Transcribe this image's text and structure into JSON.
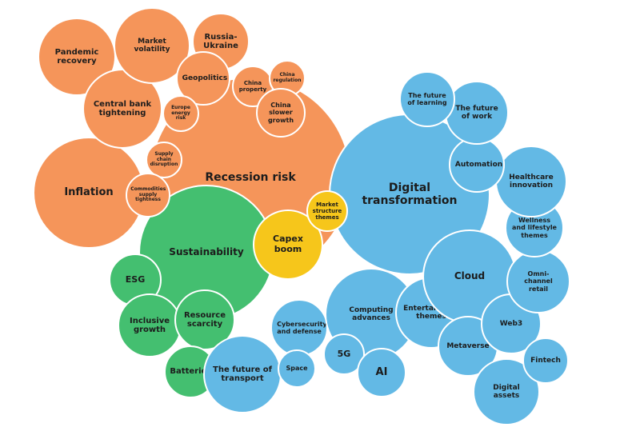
{
  "nodes": [
    {
      "label": "Recession risk"
    },
    {
      "label": "Digital transformation"
    },
    {
      "label": "Sustainability"
    },
    {
      "label": "Inflation"
    },
    {
      "label": "Pandemic recovery"
    },
    {
      "label": "Central bank tightening"
    },
    {
      "label": "Market volatility"
    },
    {
      "label": "Russia-Ukraine"
    },
    {
      "label": "Geopolitics"
    },
    {
      "label": "China property"
    },
    {
      "label": "China regulation"
    },
    {
      "label": "China slower growth"
    },
    {
      "label": "Europe energy risk"
    },
    {
      "label": "Supply chain disruption"
    },
    {
      "label": "Commodities supply tightness"
    },
    {
      "label": "Capex boom"
    },
    {
      "label": "Market structure themes"
    },
    {
      "label": "ESG"
    },
    {
      "label": "Inclusive growth"
    },
    {
      "label": "Resource scarcity"
    },
    {
      "label": "Batteries"
    },
    {
      "label": "The future of transport"
    },
    {
      "label": "Cybersecurity and defense"
    },
    {
      "label": "Space"
    },
    {
      "label": "Computing advances"
    },
    {
      "label": "5G"
    },
    {
      "label": "AI"
    },
    {
      "label": "Entertainment themes"
    },
    {
      "label": "Cloud"
    },
    {
      "label": "Metaverse"
    },
    {
      "label": "Web3"
    },
    {
      "label": "Digital assets"
    },
    {
      "label": "Fintech"
    },
    {
      "label": "Omni-channel retail"
    },
    {
      "label": "Wellness and lifestyle themes"
    },
    {
      "label": "Healthcare innovation"
    },
    {
      "label": "Automation"
    },
    {
      "label": "The future of work"
    },
    {
      "label": "The future of learning"
    }
  ]
}
